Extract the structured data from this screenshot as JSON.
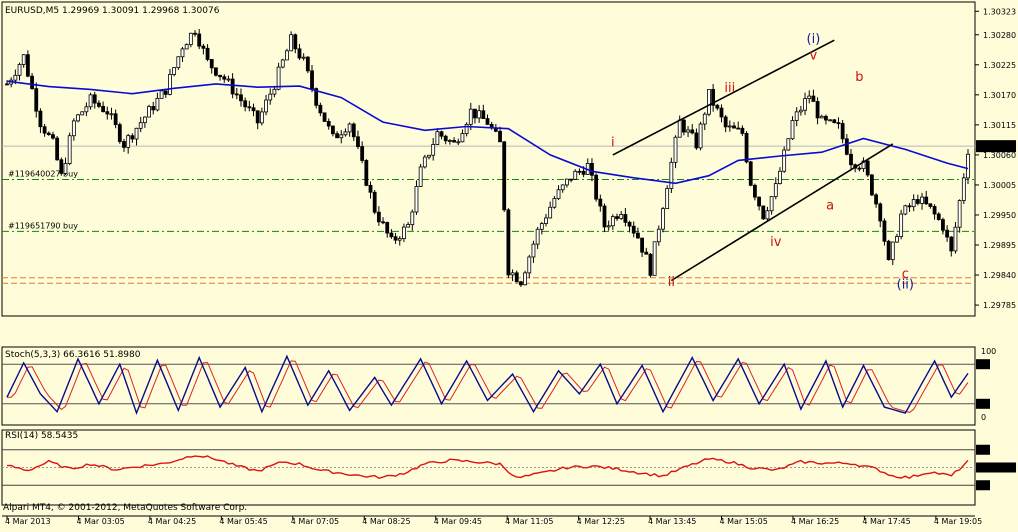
{
  "window": {
    "symbol_header": "EURUSD,M5  1.29969 1.30091 1.29968 1.30076",
    "copyright": "Alpari MT4, © 2001-2012, MetaQuotes Software Corp."
  },
  "colors": {
    "background": "#fffdd9",
    "candles": "#000000",
    "moving_average": "#0a0ad2",
    "order_line": "#0b8a0b",
    "level_line": "#e07a2a",
    "wave_red": "#cc1111",
    "wave_blue": "#1a1a9a",
    "stoch_main": "#0a0a8a",
    "stoch_signal": "#dd2222",
    "rsi_line": "#dd1111"
  },
  "price_panel": {
    "current_price": "1.30076",
    "price_ticks": [
      "1.30323",
      "1.30280",
      "1.30225",
      "1.30170",
      "1.30115",
      "1.30060",
      "1.30005",
      "1.29950",
      "1.29895",
      "1.29840",
      "1.29785"
    ],
    "orders": [
      {
        "label": "#119640027 buy",
        "price": 1.30015
      },
      {
        "label": "#119651790 buy",
        "price": 1.2992
      }
    ],
    "levels": [
      1.29835,
      1.29825
    ],
    "wave_labels": [
      {
        "text": "i",
        "color": "red"
      },
      {
        "text": "ii",
        "color": "red"
      },
      {
        "text": "iii",
        "color": "red"
      },
      {
        "text": "iv",
        "color": "red"
      },
      {
        "text": "v",
        "color": "red"
      },
      {
        "text": "a",
        "color": "red"
      },
      {
        "text": "b",
        "color": "red"
      },
      {
        "text": "c",
        "color": "red"
      },
      {
        "text": "(i)",
        "color": "blue"
      },
      {
        "text": "(ii)",
        "color": "blue"
      }
    ]
  },
  "stochastic_panel": {
    "header": "Stoch(5,3,3) 66.3616 51.8980",
    "scale_labels": [
      "100",
      "80",
      "20",
      "0"
    ],
    "levels": [
      80,
      20
    ]
  },
  "rsi_panel": {
    "header": "RSI(14) 58.5435",
    "scale_labels": [
      "75",
      "50.0000",
      "25"
    ],
    "levels": [
      75,
      50,
      25
    ],
    "last_value": 58.5435
  },
  "time_axis": {
    "labels": [
      "4 Mar 2013",
      "4 Mar 03:05",
      "4 Mar 04:25",
      "4 Mar 05:45",
      "4 Mar 07:05",
      "4 Mar 08:25",
      "4 Mar 09:45",
      "4 Mar 11:05",
      "4 Mar 12:25",
      "4 Mar 13:45",
      "4 Mar 15:05",
      "4 Mar 16:25",
      "4 Mar 17:45",
      "4 Mar 19:05"
    ]
  },
  "chart_data": {
    "type": "candlestick",
    "symbol": "EURUSD",
    "timeframe": "M5",
    "last_bar": {
      "open": 1.29969,
      "high": 1.30091,
      "low": 1.29968,
      "close": 1.30076
    },
    "ylim": [
      1.29765,
      1.3034
    ],
    "close_path": [
      {
        "t": 0,
        "p": 1.3019
      },
      {
        "t": 4,
        "p": 1.3024
      },
      {
        "t": 8,
        "p": 1.3012
      },
      {
        "t": 11,
        "p": 1.3008
      },
      {
        "t": 13,
        "p": 1.3002
      },
      {
        "t": 16,
        "p": 1.3012
      },
      {
        "t": 20,
        "p": 1.3016
      },
      {
        "t": 24,
        "p": 1.3014
      },
      {
        "t": 28,
        "p": 1.3008
      },
      {
        "t": 33,
        "p": 1.3013
      },
      {
        "t": 38,
        "p": 1.3018
      },
      {
        "t": 42,
        "p": 1.3026
      },
      {
        "t": 45,
        "p": 1.3029
      },
      {
        "t": 48,
        "p": 1.3023
      },
      {
        "t": 52,
        "p": 1.302
      },
      {
        "t": 56,
        "p": 1.3016
      },
      {
        "t": 60,
        "p": 1.3012
      },
      {
        "t": 64,
        "p": 1.3019
      },
      {
        "t": 68,
        "p": 1.3027
      },
      {
        "t": 71,
        "p": 1.3023
      },
      {
        "t": 74,
        "p": 1.3016
      },
      {
        "t": 78,
        "p": 1.3009
      },
      {
        "t": 82,
        "p": 1.3012
      },
      {
        "t": 85,
        "p": 1.3004
      },
      {
        "t": 88,
        "p": 1.2996
      },
      {
        "t": 92,
        "p": 1.299
      },
      {
        "t": 96,
        "p": 1.2993
      },
      {
        "t": 99,
        "p": 1.3003
      },
      {
        "t": 103,
        "p": 1.301
      },
      {
        "t": 107,
        "p": 1.3008
      },
      {
        "t": 111,
        "p": 1.3014
      },
      {
        "t": 115,
        "p": 1.3012
      },
      {
        "t": 118,
        "p": 1.3008
      },
      {
        "t": 120,
        "p": 1.2985
      },
      {
        "t": 123,
        "p": 1.2983
      },
      {
        "t": 127,
        "p": 1.2992
      },
      {
        "t": 131,
        "p": 1.2998
      },
      {
        "t": 135,
        "p": 1.3002
      },
      {
        "t": 139,
        "p": 1.3004
      },
      {
        "t": 143,
        "p": 1.2993
      },
      {
        "t": 147,
        "p": 1.2996
      },
      {
        "t": 151,
        "p": 1.2991
      },
      {
        "t": 154,
        "p": 1.2985
      },
      {
        "t": 157,
        "p": 1.2997
      },
      {
        "t": 161,
        "p": 1.3012
      },
      {
        "t": 165,
        "p": 1.3008
      },
      {
        "t": 168,
        "p": 1.3017
      },
      {
        "t": 172,
        "p": 1.3011
      },
      {
        "t": 176,
        "p": 1.301
      },
      {
        "t": 178,
        "p": 1.3001
      },
      {
        "t": 181,
        "p": 1.2995
      },
      {
        "t": 184,
        "p": 1.3
      },
      {
        "t": 188,
        "p": 1.3012
      },
      {
        "t": 192,
        "p": 1.3017
      },
      {
        "t": 195,
        "p": 1.3012
      },
      {
        "t": 199,
        "p": 1.3011
      },
      {
        "t": 202,
        "p": 1.3005
      },
      {
        "t": 205,
        "p": 1.3004
      },
      {
        "t": 209,
        "p": 1.2995
      },
      {
        "t": 211,
        "p": 1.2986
      },
      {
        "t": 214,
        "p": 1.2995
      },
      {
        "t": 218,
        "p": 1.2998
      },
      {
        "t": 221,
        "p": 1.2996
      },
      {
        "t": 224,
        "p": 1.2993
      },
      {
        "t": 226,
        "p": 1.2988
      },
      {
        "t": 230,
        "p": 1.3007
      }
    ],
    "ma_path": [
      {
        "t": 0,
        "p": 1.30195
      },
      {
        "t": 10,
        "p": 1.30185
      },
      {
        "t": 20,
        "p": 1.3018
      },
      {
        "t": 30,
        "p": 1.30172
      },
      {
        "t": 40,
        "p": 1.30182
      },
      {
        "t": 50,
        "p": 1.3019
      },
      {
        "t": 60,
        "p": 1.30184
      },
      {
        "t": 70,
        "p": 1.30186
      },
      {
        "t": 80,
        "p": 1.30165
      },
      {
        "t": 90,
        "p": 1.3012
      },
      {
        "t": 100,
        "p": 1.30105
      },
      {
        "t": 110,
        "p": 1.30112
      },
      {
        "t": 120,
        "p": 1.30108
      },
      {
        "t": 130,
        "p": 1.3006
      },
      {
        "t": 140,
        "p": 1.3003
      },
      {
        "t": 150,
        "p": 1.30018
      },
      {
        "t": 160,
        "p": 1.30008
      },
      {
        "t": 168,
        "p": 1.30022
      },
      {
        "t": 175,
        "p": 1.3005
      },
      {
        "t": 185,
        "p": 1.30058
      },
      {
        "t": 195,
        "p": 1.30065
      },
      {
        "t": 205,
        "p": 1.3009
      },
      {
        "t": 215,
        "p": 1.3007
      },
      {
        "t": 225,
        "p": 1.30045
      },
      {
        "t": 230,
        "p": 1.30035
      }
    ],
    "channel_lines": [
      {
        "from": {
          "t": 145,
          "p": 1.3006
        },
        "to": {
          "t": 198,
          "p": 1.3027
        }
      },
      {
        "from": {
          "t": 159,
          "p": 1.2983
        },
        "to": {
          "t": 212,
          "p": 1.3008
        }
      }
    ],
    "wave_points": [
      {
        "text": "i",
        "t": 145,
        "p": 1.30075
      },
      {
        "text": "ii",
        "t": 159,
        "p": 1.2982
      },
      {
        "text": "iii",
        "t": 173,
        "p": 1.30175
      },
      {
        "text": "iv",
        "t": 184,
        "p": 1.29893
      },
      {
        "text": "v",
        "t": 193,
        "p": 1.30235
      },
      {
        "text": "a",
        "t": 197,
        "p": 1.2996
      },
      {
        "text": "b",
        "t": 204,
        "p": 1.30195
      },
      {
        "text": "c",
        "t": 215,
        "p": 1.29835
      },
      {
        "text": "(i)",
        "t": 193,
        "p": 1.30265
      },
      {
        "text": "(ii)",
        "t": 215,
        "p": 1.29815
      }
    ],
    "stoch_path": [
      {
        "t": 0,
        "v": 30
      },
      {
        "t": 4,
        "v": 82
      },
      {
        "t": 8,
        "v": 35
      },
      {
        "t": 12,
        "v": 8
      },
      {
        "t": 17,
        "v": 88
      },
      {
        "t": 22,
        "v": 20
      },
      {
        "t": 27,
        "v": 80
      },
      {
        "t": 31,
        "v": 6
      },
      {
        "t": 36,
        "v": 86
      },
      {
        "t": 41,
        "v": 10
      },
      {
        "t": 46,
        "v": 90
      },
      {
        "t": 51,
        "v": 15
      },
      {
        "t": 57,
        "v": 75
      },
      {
        "t": 61,
        "v": 8
      },
      {
        "t": 67,
        "v": 92
      },
      {
        "t": 72,
        "v": 18
      },
      {
        "t": 77,
        "v": 70
      },
      {
        "t": 82,
        "v": 10
      },
      {
        "t": 88,
        "v": 60
      },
      {
        "t": 92,
        "v": 18
      },
      {
        "t": 99,
        "v": 88
      },
      {
        "t": 104,
        "v": 20
      },
      {
        "t": 110,
        "v": 85
      },
      {
        "t": 115,
        "v": 25
      },
      {
        "t": 121,
        "v": 65
      },
      {
        "t": 126,
        "v": 8
      },
      {
        "t": 132,
        "v": 70
      },
      {
        "t": 137,
        "v": 35
      },
      {
        "t": 142,
        "v": 80
      },
      {
        "t": 146,
        "v": 20
      },
      {
        "t": 152,
        "v": 78
      },
      {
        "t": 157,
        "v": 8
      },
      {
        "t": 164,
        "v": 90
      },
      {
        "t": 169,
        "v": 25
      },
      {
        "t": 175,
        "v": 88
      },
      {
        "t": 180,
        "v": 20
      },
      {
        "t": 186,
        "v": 80
      },
      {
        "t": 190,
        "v": 12
      },
      {
        "t": 196,
        "v": 85
      },
      {
        "t": 200,
        "v": 15
      },
      {
        "t": 205,
        "v": 78
      },
      {
        "t": 210,
        "v": 15
      },
      {
        "t": 215,
        "v": 6
      },
      {
        "t": 222,
        "v": 85
      },
      {
        "t": 226,
        "v": 30
      },
      {
        "t": 230,
        "v": 66
      }
    ],
    "rsi_path": [
      {
        "t": 0,
        "v": 53
      },
      {
        "t": 5,
        "v": 46
      },
      {
        "t": 10,
        "v": 58
      },
      {
        "t": 15,
        "v": 48
      },
      {
        "t": 20,
        "v": 55
      },
      {
        "t": 26,
        "v": 47
      },
      {
        "t": 32,
        "v": 52
      },
      {
        "t": 38,
        "v": 56
      },
      {
        "t": 45,
        "v": 68
      },
      {
        "t": 50,
        "v": 62
      },
      {
        "t": 55,
        "v": 52
      },
      {
        "t": 60,
        "v": 45
      },
      {
        "t": 66,
        "v": 58
      },
      {
        "t": 70,
        "v": 55
      },
      {
        "t": 75,
        "v": 46
      },
      {
        "t": 80,
        "v": 42
      },
      {
        "t": 85,
        "v": 38
      },
      {
        "t": 90,
        "v": 36
      },
      {
        "t": 95,
        "v": 42
      },
      {
        "t": 100,
        "v": 55
      },
      {
        "t": 106,
        "v": 60
      },
      {
        "t": 112,
        "v": 58
      },
      {
        "t": 118,
        "v": 55
      },
      {
        "t": 122,
        "v": 35
      },
      {
        "t": 128,
        "v": 42
      },
      {
        "t": 134,
        "v": 50
      },
      {
        "t": 140,
        "v": 52
      },
      {
        "t": 146,
        "v": 48
      },
      {
        "t": 152,
        "v": 42
      },
      {
        "t": 157,
        "v": 38
      },
      {
        "t": 163,
        "v": 52
      },
      {
        "t": 168,
        "v": 62
      },
      {
        "t": 173,
        "v": 58
      },
      {
        "t": 178,
        "v": 50
      },
      {
        "t": 184,
        "v": 46
      },
      {
        "t": 190,
        "v": 58
      },
      {
        "t": 196,
        "v": 56
      },
      {
        "t": 202,
        "v": 56
      },
      {
        "t": 208,
        "v": 48
      },
      {
        "t": 212,
        "v": 38
      },
      {
        "t": 216,
        "v": 36
      },
      {
        "t": 221,
        "v": 44
      },
      {
        "t": 226,
        "v": 38
      },
      {
        "t": 230,
        "v": 58.5
      }
    ]
  }
}
